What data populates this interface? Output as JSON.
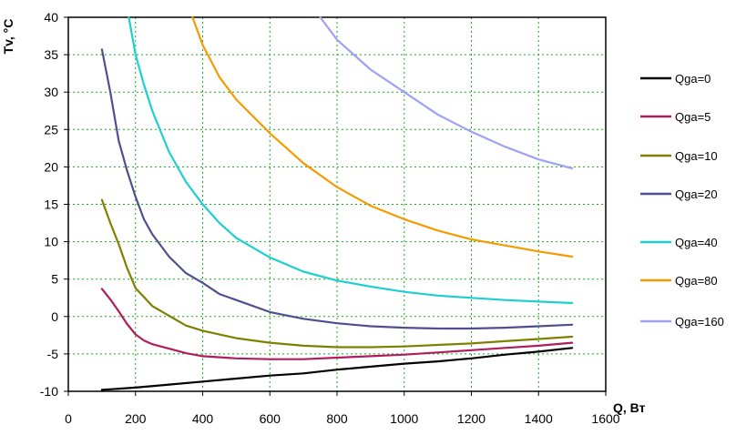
{
  "chart_data": {
    "type": "line",
    "title": "",
    "xlabel": "Q, Вт",
    "ylabel": "Tv, °C",
    "xlim": [
      0,
      1600
    ],
    "ylim": [
      -10,
      40
    ],
    "xticks": [
      0,
      200,
      400,
      600,
      800,
      1000,
      1200,
      1400,
      1600
    ],
    "yticks": [
      -10,
      -5,
      0,
      5,
      10,
      15,
      20,
      25,
      30,
      35,
      40
    ],
    "grid": true,
    "legend_position": "right",
    "series": [
      {
        "name": "Qga=0",
        "color": "#000000",
        "points": [
          [
            100,
            -9.8
          ],
          [
            200,
            -9.5
          ],
          [
            300,
            -9.1
          ],
          [
            400,
            -8.7
          ],
          [
            500,
            -8.3
          ],
          [
            600,
            -7.9
          ],
          [
            700,
            -7.6
          ],
          [
            800,
            -7.1
          ],
          [
            900,
            -6.7
          ],
          [
            1000,
            -6.3
          ],
          [
            1100,
            -6.0
          ],
          [
            1200,
            -5.6
          ],
          [
            1300,
            -5.1
          ],
          [
            1400,
            -4.7
          ],
          [
            1500,
            -4.2
          ]
        ]
      },
      {
        "name": "Qga=5",
        "color": "#b01c5e",
        "points": [
          [
            100,
            3.7
          ],
          [
            125,
            2.3
          ],
          [
            150,
            0.7
          ],
          [
            175,
            -1.0
          ],
          [
            200,
            -2.4
          ],
          [
            225,
            -3.2
          ],
          [
            250,
            -3.7
          ],
          [
            300,
            -4.3
          ],
          [
            350,
            -4.9
          ],
          [
            400,
            -5.3
          ],
          [
            500,
            -5.6
          ],
          [
            600,
            -5.7
          ],
          [
            700,
            -5.7
          ],
          [
            800,
            -5.5
          ],
          [
            900,
            -5.3
          ],
          [
            1000,
            -5.1
          ],
          [
            1100,
            -4.8
          ],
          [
            1200,
            -4.5
          ],
          [
            1300,
            -4.2
          ],
          [
            1400,
            -3.9
          ],
          [
            1500,
            -3.5
          ]
        ]
      },
      {
        "name": "Qga=10",
        "color": "#808000",
        "points": [
          [
            100,
            15.6
          ],
          [
            125,
            12.5
          ],
          [
            150,
            9.7
          ],
          [
            175,
            6.5
          ],
          [
            200,
            3.8
          ],
          [
            225,
            2.6
          ],
          [
            250,
            1.4
          ],
          [
            300,
            0.1
          ],
          [
            350,
            -1.2
          ],
          [
            400,
            -1.9
          ],
          [
            500,
            -2.9
          ],
          [
            600,
            -3.5
          ],
          [
            700,
            -3.9
          ],
          [
            800,
            -4.1
          ],
          [
            900,
            -4.1
          ],
          [
            1000,
            -4.0
          ],
          [
            1100,
            -3.8
          ],
          [
            1200,
            -3.6
          ],
          [
            1300,
            -3.3
          ],
          [
            1400,
            -3.0
          ],
          [
            1500,
            -2.7
          ]
        ]
      },
      {
        "name": "Qga=20",
        "color": "#4f4f8f",
        "points": [
          [
            100,
            35.7
          ],
          [
            125,
            30.0
          ],
          [
            150,
            23.5
          ],
          [
            175,
            19.5
          ],
          [
            200,
            16.0
          ],
          [
            225,
            13.0
          ],
          [
            250,
            11.0
          ],
          [
            300,
            8.0
          ],
          [
            350,
            5.8
          ],
          [
            400,
            4.5
          ],
          [
            450,
            3.0
          ],
          [
            500,
            2.2
          ],
          [
            600,
            0.6
          ],
          [
            700,
            -0.3
          ],
          [
            800,
            -0.9
          ],
          [
            900,
            -1.3
          ],
          [
            1000,
            -1.5
          ],
          [
            1100,
            -1.6
          ],
          [
            1200,
            -1.6
          ],
          [
            1300,
            -1.5
          ],
          [
            1400,
            -1.3
          ],
          [
            1500,
            -1.1
          ]
        ]
      },
      {
        "name": "Qga=40",
        "color": "#1ecfcf",
        "points": [
          [
            180,
            40
          ],
          [
            200,
            35.0
          ],
          [
            225,
            31.0
          ],
          [
            250,
            27.5
          ],
          [
            300,
            22.0
          ],
          [
            350,
            18.0
          ],
          [
            400,
            15.0
          ],
          [
            450,
            12.5
          ],
          [
            500,
            10.5
          ],
          [
            600,
            7.9
          ],
          [
            700,
            6.0
          ],
          [
            800,
            4.8
          ],
          [
            900,
            4.0
          ],
          [
            1000,
            3.3
          ],
          [
            1100,
            2.8
          ],
          [
            1200,
            2.5
          ],
          [
            1300,
            2.2
          ],
          [
            1400,
            2.0
          ],
          [
            1500,
            1.8
          ]
        ]
      },
      {
        "name": "Qga=80",
        "color": "#f59a00",
        "points": [
          [
            370,
            40
          ],
          [
            400,
            36.3
          ],
          [
            450,
            32.0
          ],
          [
            500,
            29.0
          ],
          [
            600,
            24.5
          ],
          [
            700,
            20.5
          ],
          [
            800,
            17.3
          ],
          [
            900,
            14.8
          ],
          [
            1000,
            13.0
          ],
          [
            1100,
            11.5
          ],
          [
            1200,
            10.3
          ],
          [
            1300,
            9.5
          ],
          [
            1400,
            8.7
          ],
          [
            1500,
            8.0
          ]
        ]
      },
      {
        "name": "Qga=160",
        "color": "#a0a0f5",
        "points": [
          [
            750,
            40
          ],
          [
            800,
            37.0
          ],
          [
            900,
            33.0
          ],
          [
            1000,
            30.0
          ],
          [
            1100,
            27.0
          ],
          [
            1200,
            24.7
          ],
          [
            1300,
            22.7
          ],
          [
            1400,
            21.0
          ],
          [
            1500,
            19.8
          ]
        ]
      }
    ]
  }
}
